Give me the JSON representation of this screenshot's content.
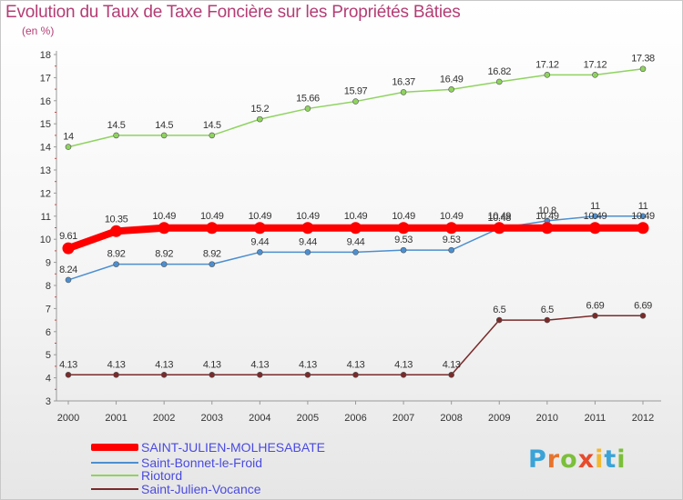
{
  "header": {
    "title": "Evolution du Taux de Taxe Foncière sur les Propriétés Bâties",
    "unit": "(en %)"
  },
  "logo": {
    "letters": [
      "P",
      "r",
      "o",
      "x",
      "i",
      "t",
      "i"
    ],
    "colors": [
      "#3aa3d8",
      "#e8732b",
      "#7bbf3a",
      "#e84a2b",
      "#f2b830",
      "#3aa3d8",
      "#7bbf3a"
    ]
  },
  "chart_data": {
    "type": "line",
    "title": "Evolution du Taux de Taxe Foncière sur les Propriétés Bâties",
    "xlabel": "",
    "ylabel": "(en %)",
    "ylim": [
      3,
      18
    ],
    "yticks": [
      3,
      4,
      5,
      6,
      7,
      8,
      9,
      10,
      11,
      12,
      13,
      14,
      15,
      16,
      17,
      18
    ],
    "grid": false,
    "legend_position": "bottom-left",
    "x": [
      2000,
      2001,
      2002,
      2003,
      2004,
      2005,
      2006,
      2007,
      2008,
      2009,
      2010,
      2011,
      2012
    ],
    "series": [
      {
        "name": "SAINT-JULIEN-MOLHESABATE",
        "color": "#ff0000",
        "values": [
          9.61,
          10.35,
          10.49,
          10.49,
          10.49,
          10.49,
          10.49,
          10.49,
          10.49,
          10.49,
          10.49,
          10.49,
          10.49
        ],
        "labels": [
          "9.61",
          "10.35",
          "10.49",
          "10.49",
          "10.49",
          "10.49",
          "10.49",
          "10.49",
          "10.49",
          "10.49",
          "10.49",
          "10.49",
          "10.49"
        ]
      },
      {
        "name": "Saint-Bonnet-le-Froid",
        "color": "#4c8fd0",
        "values": [
          8.24,
          8.92,
          8.92,
          8.92,
          9.44,
          9.44,
          9.44,
          9.53,
          9.53,
          10.48,
          10.8,
          11,
          11
        ],
        "labels": [
          "8.24",
          "8.92",
          "8.92",
          "8.92",
          "9.44",
          "9.44",
          "9.44",
          "9.53",
          "9.53",
          "10.48",
          "10.8",
          "11",
          "11"
        ]
      },
      {
        "name": "Riotord",
        "color": "#8fd35f",
        "values": [
          14,
          14.5,
          14.5,
          14.5,
          15.2,
          15.66,
          15.97,
          16.37,
          16.49,
          16.82,
          17.12,
          17.12,
          17.38
        ],
        "labels": [
          "14",
          "14.5",
          "14.5",
          "14.5",
          "15.2",
          "15.66",
          "15.97",
          "16.37",
          "16.49",
          "16.82",
          "17.12",
          "17.12",
          "17.38"
        ]
      },
      {
        "name": "Saint-Julien-Vocance",
        "color": "#7a2a2a",
        "values": [
          4.13,
          4.13,
          4.13,
          4.13,
          4.13,
          4.13,
          4.13,
          4.13,
          4.13,
          6.5,
          6.5,
          6.69,
          6.69
        ],
        "labels": [
          "4.13",
          "4.13",
          "4.13",
          "4.13",
          "4.13",
          "4.13",
          "4.13",
          "4.13",
          "4.13",
          "6.5",
          "6.5",
          "6.69",
          "6.69"
        ]
      }
    ]
  }
}
